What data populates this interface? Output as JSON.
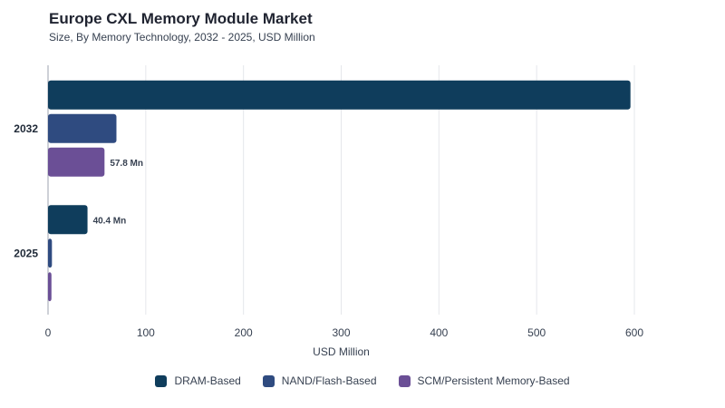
{
  "chart_data": {
    "type": "bar",
    "orientation": "horizontal",
    "title": "Europe CXL Memory Module Market",
    "subtitle": "Size, By Memory Technology, 2032 - 2025, USD Million",
    "categories": [
      "2032",
      "2025"
    ],
    "series": [
      {
        "name": "DRAM-Based",
        "color": "#0f3d5c",
        "values": [
          596,
          40.4
        ],
        "data_labels": [
          "",
          "40.4 Mn"
        ]
      },
      {
        "name": "NAND/Flash-Based",
        "color": "#2f4b80",
        "values": [
          70,
          4
        ],
        "data_labels": [
          "",
          ""
        ]
      },
      {
        "name": "SCM/Persistent Memory-Based",
        "color": "#6b4f96",
        "values": [
          57.8,
          3.5
        ],
        "data_labels": [
          "57.8 Mn",
          ""
        ]
      }
    ],
    "xlabel": "USD Million",
    "ylabel": "",
    "xlim": [
      0,
      600
    ],
    "xticks": [
      "0",
      "100",
      "200",
      "300",
      "400",
      "500",
      "600"
    ],
    "grid": true,
    "legend_position": "bottom"
  }
}
